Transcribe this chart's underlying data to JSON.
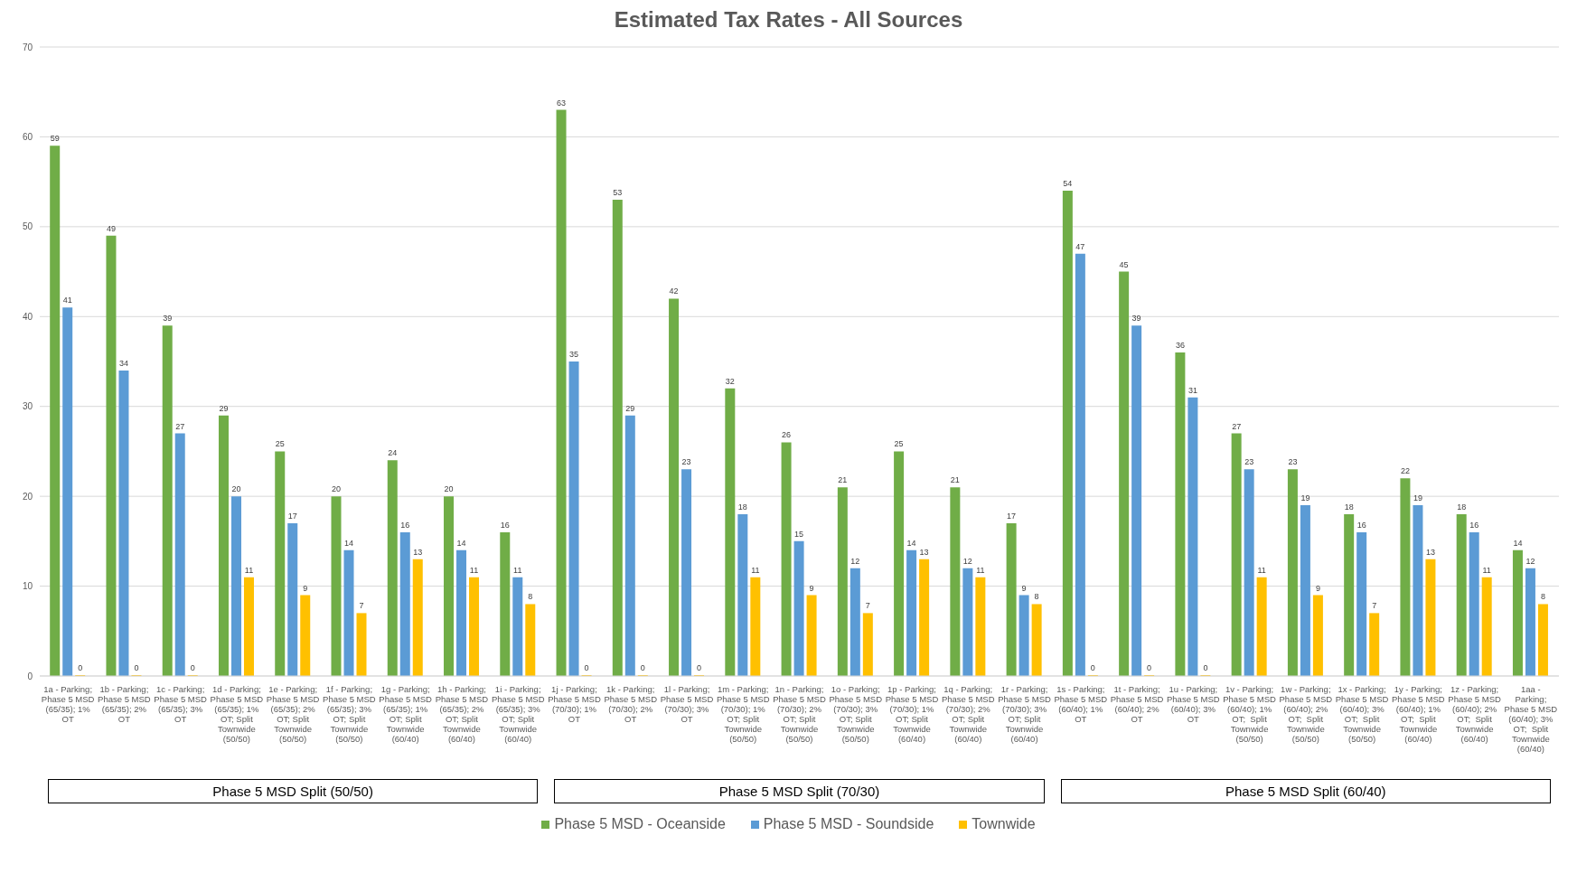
{
  "chart_data": {
    "type": "bar",
    "title": "Estimated Tax Rates - All Sources",
    "categories": [
      "1a - Parking; Phase 5 MSD (65/35); 1% OT",
      "1b - Parking; Phase 5 MSD (65/35); 2% OT",
      "1c - Parking; Phase 5 MSD (65/35); 3% OT",
      "1d - Parking; Phase 5 MSD (65/35); 1% OT; Split Townwide (50/50)",
      "1e - Parking; Phase 5 MSD (65/35); 2% OT; Split Townwide (50/50)",
      "1f - Parking; Phase 5 MSD (65/35); 3% OT; Split Townwide (50/50)",
      "1g - Parking; Phase 5 MSD (65/35); 1% OT; Split Townwide (60/40)",
      "1h - Parking; Phase 5 MSD (65/35); 2% OT; Split Townwide (60/40)",
      "1i - Parking; Phase 5 MSD (65/35); 3% OT; Split Townwide (60/40)",
      "1j - Parking; Phase 5 MSD (70/30); 1% OT",
      "1k - Parking; Phase 5 MSD (70/30); 2% OT",
      "1l - Parking; Phase 5 MSD (70/30); 3% OT",
      "1m - Parking; Phase 5 MSD (70/30); 1% OT; Split Townwide (50/50)",
      "1n - Parking; Phase 5 MSD (70/30); 2% OT; Split Townwide (50/50)",
      "1o - Parking; Phase 5 MSD (70/30); 3% OT; Split Townwide (50/50)",
      "1p - Parking; Phase 5 MSD (70/30); 1% OT; Split Townwide (60/40)",
      "1q - Parking; Phase 5 MSD (70/30); 2% OT; Split Townwide (60/40)",
      "1r - Parking; Phase 5 MSD (70/30); 3% OT; Split Townwide (60/40)",
      "1s - Parking; Phase 5 MSD (60/40); 1% OT",
      "1t - Parking; Phase 5 MSD (60/40); 2% OT",
      "1u - Parking; Phase 5 MSD (60/40); 3% OT",
      "1v - Parking; Phase 5 MSD (60/40); 1% OT;  Split Townwide (50/50)",
      "1w - Parking; Phase 5 MSD (60/40); 2% OT;  Split Townwide (50/50)",
      "1x - Parking; Phase 5 MSD (60/40); 3% OT;  Split Townwide (50/50)",
      "1y - Parking; Phase 5 MSD (60/40); 1% OT;  Split Townwide (60/40)",
      "1z - Parking; Phase 5 MSD (60/40); 2% OT;  Split Townwide (60/40)",
      "1aa - Parking; Phase 5 MSD (60/40); 3% OT;  Split Townwide (60/40)"
    ],
    "series": [
      {
        "name": "Phase 5 MSD - Oceanside",
        "color": "#70ad47",
        "values": [
          59,
          49,
          39,
          29,
          25,
          20,
          24,
          20,
          16,
          63,
          53,
          42,
          32,
          26,
          21,
          25,
          21,
          17,
          54,
          45,
          36,
          27,
          23,
          18,
          22,
          18,
          14
        ]
      },
      {
        "name": "Phase 5 MSD - Soundside",
        "color": "#5b9bd5",
        "values": [
          41,
          34,
          27,
          20,
          17,
          14,
          16,
          14,
          11,
          35,
          29,
          23,
          18,
          15,
          12,
          14,
          12,
          9,
          47,
          39,
          31,
          23,
          19,
          16,
          19,
          16,
          12
        ]
      },
      {
        "name": "Townwide",
        "color": "#ffc000",
        "values": [
          0,
          0,
          0,
          11,
          9,
          7,
          13,
          11,
          8,
          0,
          0,
          0,
          11,
          9,
          7,
          13,
          11,
          8,
          0,
          0,
          0,
          11,
          9,
          7,
          13,
          11,
          8
        ]
      }
    ],
    "annotations": [
      "Phase 5 MSD Split (50/50)",
      "Phase 5 MSD Split (70/30)",
      "Phase 5 MSD Split (60/40)"
    ],
    "ylim": [
      0,
      70
    ],
    "yticks": [
      0,
      10,
      20,
      30,
      40,
      50,
      60,
      70
    ],
    "grid": "y",
    "legend": "bottom",
    "data_labels": true
  }
}
